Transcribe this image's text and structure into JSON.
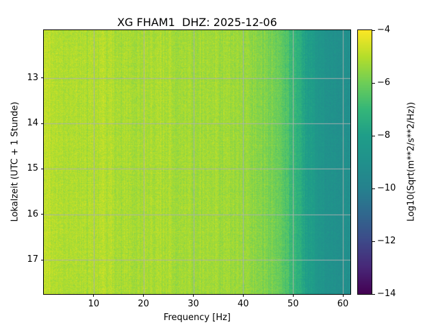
{
  "figure": {
    "background": "#ffffff"
  },
  "chart_data": {
    "type": "heatmap",
    "title": "XG FHAM1  DHZ: 2025-12-06",
    "xlabel": "Frequency [Hz]",
    "ylabel": "Lokalzeit (UTC + 1 Stunde)",
    "x_range": [
      0,
      61.5
    ],
    "y_range": [
      11.95,
      17.75
    ],
    "x_ticks": [
      10,
      20,
      30,
      40,
      50,
      60
    ],
    "y_ticks": [
      13,
      14,
      15,
      16,
      17
    ],
    "grid": true,
    "grid_color": "#b0b0b0",
    "colormap": "viridis",
    "colorbar": {
      "label": "Log10(Sqrt(m**2/s**2/Hz))",
      "ticks": [
        -4,
        -6,
        -8,
        -10,
        -12,
        -14
      ],
      "vmin": -14,
      "vmax": -4
    },
    "spectral_profile": {
      "description": "Mean Log10(Sqrt(PSD)) versus frequency; spectrum is roughly stationary over the shown time window (~12:00 to ~17:45 local time). Broadband high level (~-5) up to ~45 Hz, roll-off between ~46 and ~55 Hz down to ~-9 near 60+ Hz.",
      "freqs": [
        0,
        3,
        8,
        12,
        18,
        24,
        30,
        36,
        42,
        46,
        49,
        51,
        53,
        55,
        58,
        61.5
      ],
      "values": [
        -4.9,
        -5.05,
        -5.15,
        -5.05,
        -5.2,
        -5.15,
        -5.3,
        -5.25,
        -5.5,
        -5.9,
        -6.6,
        -7.3,
        -8.0,
        -8.6,
        -9.0,
        -9.2
      ]
    },
    "noise_texture": {
      "column_jitter": 0.45,
      "pixel_jitter": 0.65,
      "row_jitter": 0.15
    }
  }
}
